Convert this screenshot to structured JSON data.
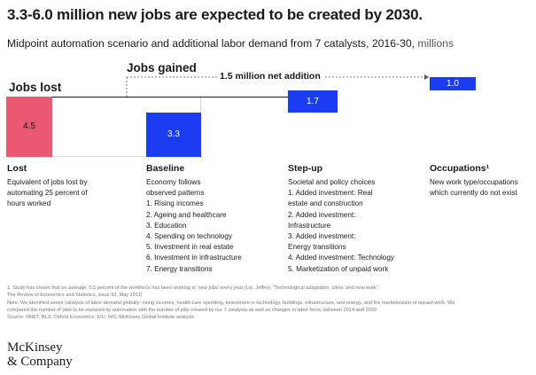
{
  "title": "3.3-6.0 million new jobs are expected to be created by 2030.",
  "subtitle": {
    "text": "Midpoint automation scenario and additional labor demand from 7 catalysts, 2016-30,",
    "unit": "millions"
  },
  "colors": {
    "lost": "#ea5872",
    "gained": "#1b3cf0",
    "baseline_guide": "#dcdcdc",
    "arrow": "#555555"
  },
  "chart_data": {
    "type": "waterfall",
    "title": "3.3-6.0 million new jobs are expected to be created by 2030.",
    "subtitle": "Midpoint automation scenario and additional labor demand from 7 catalysts, 2016-30, millions",
    "group_labels": {
      "lost": "Jobs lost",
      "gained": "Jobs gained"
    },
    "net_label": "1.5 million net addition",
    "bars": [
      {
        "id": "lost",
        "label": "Lost",
        "value": 4.5,
        "start": 0,
        "end": -4.5,
        "value_label": "4.5",
        "direction": "down"
      },
      {
        "id": "baseline",
        "label": "Baseline",
        "value": 3.3,
        "start": -4.5,
        "end": -1.2,
        "value_label": "3.3",
        "direction": "up"
      },
      {
        "id": "stepup",
        "label": "Step-up",
        "value": 1.7,
        "start": -1.2,
        "end": 0.5,
        "value_label": "1.7",
        "direction": "up"
      },
      {
        "id": "occupations",
        "label": "Occupations¹",
        "value": 1.0,
        "start": 0.5,
        "end": 1.5,
        "value_label": "1.0",
        "direction": "up"
      }
    ]
  },
  "columns": [
    {
      "heading": "Lost",
      "lines": [
        "Equivalent of jobs lost by",
        "automating 25 percent of",
        "hours worked"
      ]
    },
    {
      "heading": "Baseline",
      "lines": [
        "Economy follows",
        "observed patterns",
        "1. Rising incomes",
        "2. Ageing and healthcare",
        "3. Education",
        "4. Spending on technology",
        "5. Investment in real estate",
        "6. Investment in infrastructure",
        "7. Energy transitions"
      ]
    },
    {
      "heading": "Step-up",
      "lines": [
        "Societal and policy choices",
        "1. Added investment: Real",
        "estate and construction",
        "2. Added investment:",
        "Infrastructure",
        "3. Added investment:",
        "Energy transitions",
        "4. Added investment: Technology",
        "5. Marketization of unpaid work"
      ]
    },
    {
      "heading": "Occupations¹",
      "lines": [
        "New work type/occupations",
        "which currently do not exist"
      ]
    }
  ],
  "footnotes": [
    "1. Study has shown that on average, 0.5 percent of the workforce has been working in 'new jobs' every year (Lin, Jeffrey, \"Technological adaptation, cities, and new work\"",
    "The Review of Economics and Statistics, issue 93, May 2011)",
    "Note: We identified seven catalysts of labor demand globally: rising incomes, health-care spending, investment in technology, buildings, infrastructure, and energy, and the marketization of unpaid work. We",
    "compared the number of jobs to be replaced by automation with the number of jobs created by our 7 catalysts as well as changes in labor force, between 2014 and 2030",
    "Source: ONET; BLS; Oxford Economics; EIU; IHS; McKinsey Global Institute analysis"
  ],
  "logo": {
    "line1": "McKinsey",
    "line2": "& Company"
  }
}
